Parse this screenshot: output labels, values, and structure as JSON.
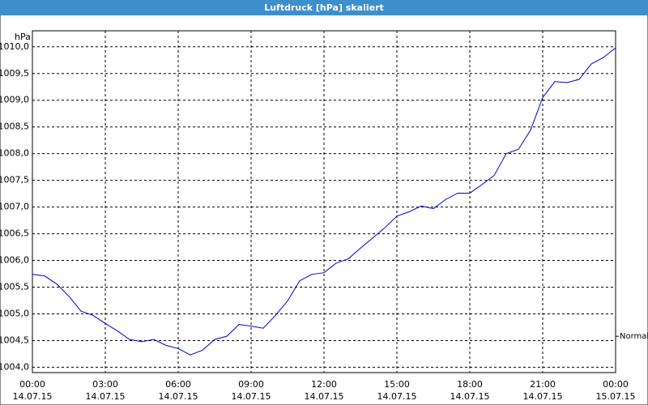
{
  "chart_data": {
    "type": "line",
    "title": "Luftdruck [hPa] skaliert",
    "y_unit": "hPa",
    "annotation": "Normal",
    "annotation_y": 1004.58,
    "x": [
      0,
      0.5,
      1,
      1.5,
      2,
      2.5,
      3,
      3.5,
      4,
      4.5,
      5,
      5.5,
      6,
      6.5,
      7,
      7.5,
      8,
      8.5,
      9,
      9.5,
      10,
      10.5,
      11,
      11.5,
      12,
      12.5,
      13,
      13.5,
      14,
      14.5,
      15,
      15.5,
      16,
      16.5,
      17,
      17.5,
      18,
      18.5,
      19,
      19.5,
      20,
      20.5,
      21,
      21.5,
      22,
      22.5,
      23,
      23.5,
      24
    ],
    "series": [
      {
        "color": "#0000c8",
        "values": [
          1005.74,
          1005.71,
          1005.56,
          1005.33,
          1005.05,
          1004.97,
          1004.82,
          1004.68,
          1004.52,
          1004.48,
          1004.52,
          1004.41,
          1004.35,
          1004.23,
          1004.32,
          1004.52,
          1004.58,
          1004.8,
          1004.77,
          1004.73,
          1004.97,
          1005.24,
          1005.62,
          1005.74,
          1005.77,
          1005.95,
          1006.03,
          1006.23,
          1006.42,
          1006.61,
          1006.83,
          1006.91,
          1007.02,
          1006.97,
          1007.14,
          1007.26,
          1007.26,
          1007.42,
          1007.59,
          1008.0,
          1008.08,
          1008.44,
          1009.05,
          1009.35,
          1009.33,
          1009.39,
          1009.68,
          1009.8,
          1009.98
        ]
      }
    ],
    "xlim": [
      0,
      24
    ],
    "xticks": [
      {
        "value": 0,
        "label": "00:00",
        "date": "14.07.15"
      },
      {
        "value": 3,
        "label": "03:00",
        "date": "14.07.15"
      },
      {
        "value": 6,
        "label": "06:00",
        "date": "14.07.15"
      },
      {
        "value": 9,
        "label": "09:00",
        "date": "14.07.15"
      },
      {
        "value": 12,
        "label": "12:00",
        "date": "14.07.15"
      },
      {
        "value": 15,
        "label": "15:00",
        "date": "14.07.15"
      },
      {
        "value": 18,
        "label": "18:00",
        "date": "14.07.15"
      },
      {
        "value": 21,
        "label": "21:00",
        "date": "14.07.15"
      },
      {
        "value": 24,
        "label": "00:00",
        "date": "15.07.15"
      }
    ],
    "ylim": [
      1003.9,
      1010.3
    ],
    "yticks": [
      {
        "value": 1004,
        "label": "1004,0"
      },
      {
        "value": 1004.5,
        "label": "1004,5"
      },
      {
        "value": 1005,
        "label": "1005,0"
      },
      {
        "value": 1005.5,
        "label": "1005,5"
      },
      {
        "value": 1006,
        "label": "1006,0"
      },
      {
        "value": 1006.5,
        "label": "1006,5"
      },
      {
        "value": 1007,
        "label": "1007,0"
      },
      {
        "value": 1007.5,
        "label": "1007,5"
      },
      {
        "value": 1008,
        "label": "1008,0"
      },
      {
        "value": 1008.5,
        "label": "1008,5"
      },
      {
        "value": 1009,
        "label": "1009,0"
      },
      {
        "value": 1009.5,
        "label": "1009,5"
      },
      {
        "value": 1010,
        "label": "1010,0"
      }
    ],
    "grid": true
  }
}
